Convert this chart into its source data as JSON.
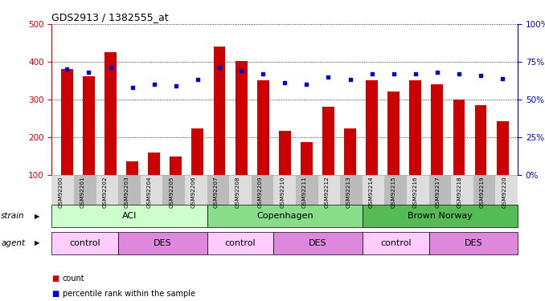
{
  "title": "GDS2913 / 1382555_at",
  "samples": [
    "GSM92200",
    "GSM92201",
    "GSM92202",
    "GSM92203",
    "GSM92204",
    "GSM92205",
    "GSM92206",
    "GSM92207",
    "GSM92208",
    "GSM92209",
    "GSM92210",
    "GSM92211",
    "GSM92212",
    "GSM92213",
    "GSM92214",
    "GSM92215",
    "GSM92216",
    "GSM92217",
    "GSM92218",
    "GSM92219",
    "GSM92220"
  ],
  "counts": [
    380,
    362,
    425,
    135,
    158,
    147,
    222,
    440,
    402,
    350,
    217,
    186,
    280,
    222,
    350,
    320,
    350,
    340,
    300,
    285,
    242
  ],
  "percentiles": [
    70,
    68,
    71,
    58,
    60,
    59,
    63,
    71,
    69,
    67,
    61,
    60,
    65,
    63,
    67,
    67,
    67,
    68,
    67,
    66,
    64
  ],
  "ylim_left": [
    100,
    500
  ],
  "ylim_right": [
    0,
    100
  ],
  "yticks_left": [
    100,
    200,
    300,
    400,
    500
  ],
  "yticks_right": [
    0,
    25,
    50,
    75,
    100
  ],
  "bar_color": "#cc0000",
  "dot_color": "#0000cc",
  "strain_groups": [
    {
      "label": "ACI",
      "start": 0,
      "end": 7,
      "color": "#ccffcc"
    },
    {
      "label": "Copenhagen",
      "start": 7,
      "end": 14,
      "color": "#88dd88"
    },
    {
      "label": "Brown Norway",
      "start": 14,
      "end": 21,
      "color": "#55bb55"
    }
  ],
  "agent_groups": [
    {
      "label": "control",
      "start": 0,
      "end": 3,
      "color": "#ffccff"
    },
    {
      "label": "DES",
      "start": 3,
      "end": 7,
      "color": "#dd88dd"
    },
    {
      "label": "control",
      "start": 7,
      "end": 10,
      "color": "#ffccff"
    },
    {
      "label": "DES",
      "start": 10,
      "end": 14,
      "color": "#dd88dd"
    },
    {
      "label": "control",
      "start": 14,
      "end": 17,
      "color": "#ffccff"
    },
    {
      "label": "DES",
      "start": 17,
      "end": 21,
      "color": "#dd88dd"
    }
  ],
  "bg_color": "#ffffff",
  "plot_bg_color": "#ffffff",
  "left_axis_color": "#cc0000",
  "right_axis_color": "#0000cc",
  "strain_label": "strain",
  "agent_label": "agent",
  "legend_count_label": "count",
  "legend_pct_label": "percentile rank within the sample"
}
